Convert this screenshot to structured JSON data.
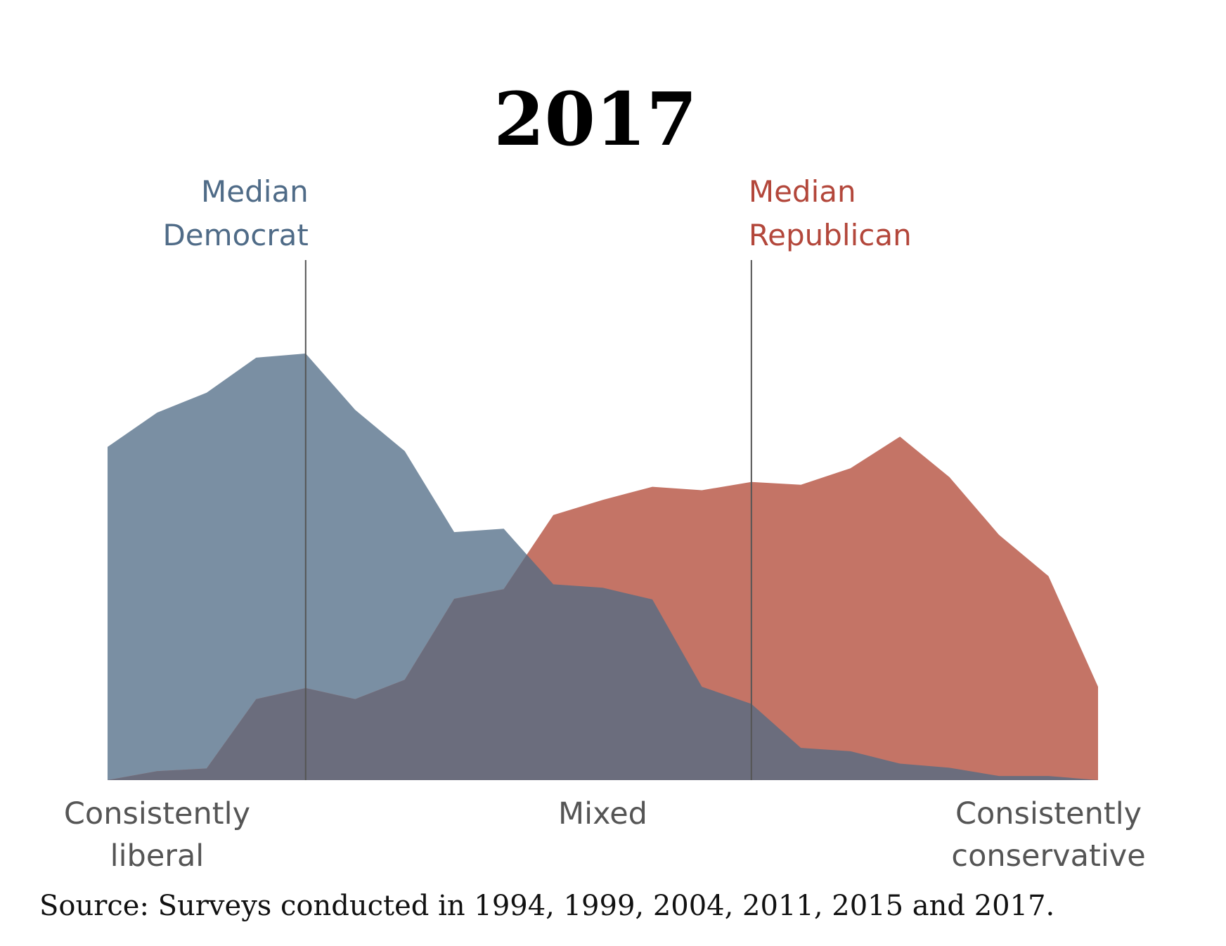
{
  "chart_data": {
    "type": "area",
    "title": "2017",
    "x_axis_labels": {
      "left": [
        "Consistently",
        "liberal"
      ],
      "center": [
        "Mixed"
      ],
      "right": [
        "Consistently",
        "conservative"
      ]
    },
    "xlim": [
      -10,
      10
    ],
    "x": [
      -10,
      -9,
      -8,
      -7,
      -6,
      -5,
      -4,
      -3,
      -2,
      -1,
      0,
      1,
      2,
      3,
      4,
      5,
      6,
      7,
      8,
      9,
      10
    ],
    "series": [
      {
        "name": "Democrat",
        "color": "#7a8fa3",
        "values": [
          48.5,
          53.5,
          56.4,
          61.5,
          62.1,
          53.9,
          47.9,
          36.1,
          36.6,
          28.5,
          28.0,
          26.3,
          13.6,
          11.1,
          4.7,
          4.2,
          2.4,
          1.8,
          0.6,
          0.6,
          0
        ]
      },
      {
        "name": "Republican",
        "color": "#c47466",
        "values": [
          0,
          1.3,
          1.7,
          11.8,
          13.4,
          11.8,
          14.6,
          26.4,
          27.8,
          38.6,
          40.8,
          42.7,
          42.2,
          43.4,
          43.0,
          45.4,
          50.0,
          44.1,
          35.7,
          29.7,
          13.6
        ]
      }
    ],
    "overlap_color": "#6b6d7d",
    "ylim": [
      0,
      62.1
    ],
    "medians": [
      {
        "name": "Democrat",
        "label_lines": [
          "Median",
          "Democrat"
        ],
        "x": -6,
        "color": "#4f6b87"
      },
      {
        "name": "Republican",
        "label_lines": [
          "Median",
          "Republican"
        ],
        "x": 3,
        "color": "#b3473b"
      }
    ],
    "source": "Source: Surveys conducted in 1994, 1999, 2004, 2011, 2015 and 2017.",
    "grid": false
  }
}
